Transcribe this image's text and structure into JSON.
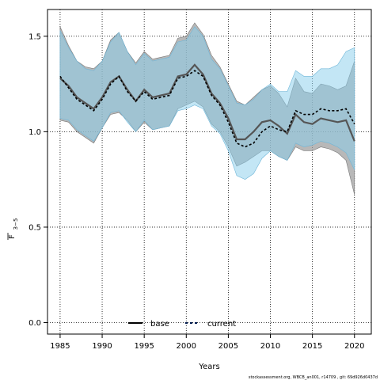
{
  "chart_data": {
    "type": "line",
    "xlabel": "Years",
    "ylabel_main": "F",
    "ylabel_sub": "3−5",
    "xlim": [
      1983.5,
      2022
    ],
    "ylim": [
      -0.06,
      1.64
    ],
    "xticks": [
      1985,
      1990,
      1995,
      2000,
      2005,
      2010,
      2015,
      2020
    ],
    "yticks": [
      0.0,
      0.5,
      1.0,
      1.5
    ],
    "ytick_labels": [
      "0.0",
      "0.5",
      "1.0",
      "1.5"
    ],
    "grid": true,
    "legend_position": "bottom-center",
    "x": [
      1985,
      1986,
      1987,
      1988,
      1989,
      1990,
      1991,
      1992,
      1993,
      1994,
      1995,
      1996,
      1997,
      1998,
      1999,
      2000,
      2001,
      2002,
      2003,
      2004,
      2005,
      2006,
      2007,
      2008,
      2009,
      2010,
      2011,
      2012,
      2013,
      2014,
      2015,
      2016,
      2017,
      2018,
      2019,
      2020
    ],
    "series": [
      {
        "name": "base",
        "color": "#000000",
        "line_color": "#555555",
        "band_color": "#9a9a9a",
        "values": [
          1.28,
          1.24,
          1.18,
          1.15,
          1.12,
          1.18,
          1.26,
          1.29,
          1.22,
          1.16,
          1.22,
          1.18,
          1.19,
          1.2,
          1.29,
          1.3,
          1.35,
          1.3,
          1.2,
          1.15,
          1.07,
          0.96,
          0.96,
          1.0,
          1.05,
          1.06,
          1.03,
          0.99,
          1.09,
          1.05,
          1.04,
          1.07,
          1.06,
          1.05,
          1.06,
          0.95
        ],
        "lower": [
          1.06,
          1.05,
          1.0,
          0.97,
          0.94,
          1.02,
          1.09,
          1.1,
          1.06,
          1.0,
          1.05,
          1.01,
          1.02,
          1.03,
          1.12,
          1.14,
          1.16,
          1.13,
          1.04,
          1.0,
          0.92,
          0.82,
          0.84,
          0.87,
          0.9,
          0.9,
          0.87,
          0.85,
          0.92,
          0.9,
          0.9,
          0.92,
          0.91,
          0.89,
          0.85,
          0.67
        ],
        "upper": [
          1.55,
          1.45,
          1.37,
          1.34,
          1.33,
          1.37,
          1.48,
          1.52,
          1.42,
          1.36,
          1.42,
          1.38,
          1.39,
          1.4,
          1.49,
          1.5,
          1.57,
          1.51,
          1.4,
          1.34,
          1.25,
          1.16,
          1.14,
          1.18,
          1.22,
          1.24,
          1.2,
          1.13,
          1.28,
          1.21,
          1.2,
          1.25,
          1.24,
          1.22,
          1.24,
          1.37
        ]
      },
      {
        "name": "current",
        "color": "#001a4d",
        "line_color": "#000000",
        "band_color": "#87ceeb",
        "values": [
          1.29,
          1.23,
          1.17,
          1.14,
          1.11,
          1.17,
          1.25,
          1.29,
          1.21,
          1.16,
          1.21,
          1.17,
          1.18,
          1.19,
          1.28,
          1.29,
          1.32,
          1.29,
          1.19,
          1.14,
          1.05,
          0.94,
          0.92,
          0.94,
          1.0,
          1.03,
          1.01,
          1.0,
          1.11,
          1.09,
          1.09,
          1.12,
          1.11,
          1.11,
          1.12,
          1.04
        ],
        "lower": [
          1.07,
          1.06,
          1.01,
          0.98,
          0.95,
          1.02,
          1.1,
          1.11,
          1.05,
          1.0,
          1.06,
          1.01,
          1.02,
          1.03,
          1.11,
          1.12,
          1.14,
          1.12,
          1.03,
          0.99,
          0.9,
          0.77,
          0.75,
          0.78,
          0.86,
          0.9,
          0.87,
          0.85,
          0.94,
          0.92,
          0.93,
          0.95,
          0.94,
          0.92,
          0.89,
          0.8
        ],
        "upper": [
          1.53,
          1.44,
          1.37,
          1.33,
          1.32,
          1.37,
          1.47,
          1.52,
          1.42,
          1.35,
          1.41,
          1.37,
          1.38,
          1.39,
          1.47,
          1.48,
          1.55,
          1.5,
          1.38,
          1.33,
          1.24,
          1.15,
          1.14,
          1.17,
          1.22,
          1.25,
          1.21,
          1.21,
          1.32,
          1.29,
          1.29,
          1.33,
          1.33,
          1.35,
          1.42,
          1.44
        ]
      }
    ]
  },
  "footer": "stockassessment.org, WBCB_an001, r14709 , git: 69d926d0437d"
}
